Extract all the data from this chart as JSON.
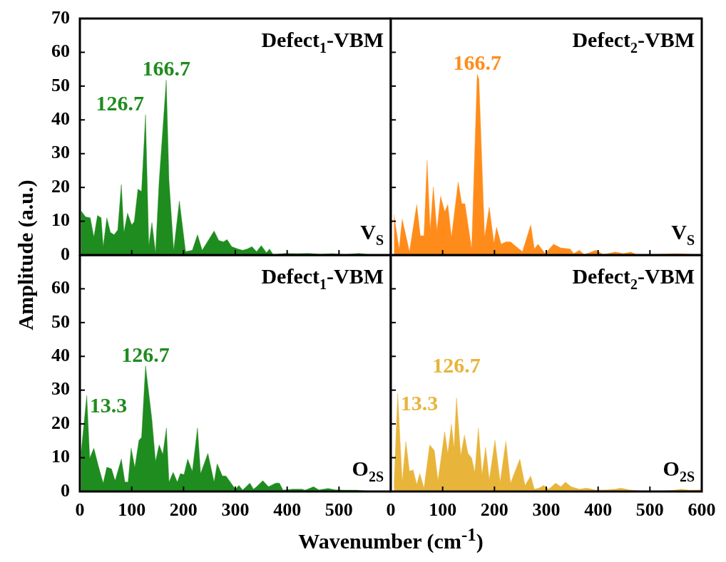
{
  "chart_data": [
    {
      "type": "area",
      "ylabel": "Amplitude (a.u.)",
      "tick_labels": "y",
      "xlim": [
        0,
        600
      ],
      "xticks": [
        0,
        100,
        200,
        300,
        400,
        500
      ],
      "ylim": [
        0,
        70
      ],
      "yticks": [
        0,
        10,
        20,
        30,
        40,
        50,
        60,
        70
      ],
      "x": [
        2,
        11,
        20,
        27,
        34,
        41,
        45,
        52,
        59,
        66,
        73,
        80,
        85,
        92,
        100,
        105,
        112,
        119,
        126.7,
        133,
        139,
        146,
        153,
        166.7,
        172,
        181,
        192,
        204,
        217,
        227,
        236,
        259,
        268,
        277,
        284,
        293,
        305,
        314,
        323,
        332,
        341,
        350,
        360,
        366,
        373,
        396,
        419,
        442,
        465,
        488,
        511,
        539,
        557,
        594
      ],
      "series": [
        {
          "color": "#1e8c1e",
          "values": [
            13.1,
            11.3,
            11,
            5.3,
            11.7,
            11,
            2.5,
            11,
            6.7,
            6,
            7.4,
            20.9,
            6.7,
            12.4,
            8.9,
            9.9,
            19.5,
            18.8,
            41.5,
            2.8,
            9.6,
            0.7,
            22,
            51.8,
            22,
            1.4,
            16,
            1,
            1.4,
            6,
            1.4,
            7.1,
            4.3,
            3.9,
            4.6,
            2.5,
            1.8,
            1.4,
            1.8,
            2.5,
            1,
            2.8,
            0.7,
            1.8,
            0.1,
            0.5,
            0.4,
            0.5,
            0.2,
            0.4,
            0.1,
            0.5,
            0.1,
            0.1
          ]
        }
      ],
      "annotations": [
        {
          "text": "126.7",
          "x": 126.7,
          "y": 41.5
        },
        {
          "text": "166.7",
          "x": 166.7,
          "y": 51.8
        },
        "Defect$_{1}$-VBM",
        "V$_{S}$"
      ]
    },
    {
      "type": "area",
      "tick_labels": false,
      "xlim": [
        0,
        600
      ],
      "xticks": [
        0,
        100,
        200,
        300,
        400,
        500,
        600
      ],
      "ylim": [
        0,
        70
      ],
      "yticks": [
        0,
        10,
        20,
        30,
        40,
        50,
        60
      ],
      "x": [
        6,
        16,
        22,
        36,
        50,
        57,
        64,
        70,
        76,
        82,
        89,
        96,
        104,
        110,
        117,
        130,
        137,
        143,
        156,
        166.7,
        170,
        181,
        190,
        199,
        204,
        213,
        222,
        231,
        245,
        254,
        270,
        277,
        284,
        298,
        314,
        328,
        346,
        353,
        364,
        373,
        396,
        410,
        433,
        449,
        463,
        474,
        502,
        552,
        594
      ],
      "series": [
        {
          "color": "#ff8c1a",
          "values": [
            12,
            1.8,
            10.6,
            1,
            14.9,
            5.7,
            5.7,
            28,
            7.4,
            20.2,
            7.1,
            17.4,
            12.8,
            14.9,
            5.3,
            21.6,
            15.2,
            15.2,
            1.8,
            53.5,
            52,
            5.3,
            14.2,
            3.5,
            8.2,
            3.2,
            3.9,
            3.9,
            2.1,
            1,
            8.9,
            1.8,
            3.2,
            0.4,
            3.2,
            2.1,
            1.8,
            0.4,
            1.4,
            0.1,
            1.4,
            0.1,
            0.9,
            0.4,
            0.9,
            0.1,
            0.1,
            0.4,
            0.1
          ]
        }
      ],
      "annotations": [
        {
          "text": "166.7",
          "x": 166.7,
          "y": 53.5
        },
        "Defect$_{2}$-VBM",
        "V$_{S}$"
      ]
    },
    {
      "type": "area",
      "xlabel": "Wavenumber (cm$^{-1}$)",
      "xlim": [
        0,
        600
      ],
      "xticks": [
        0,
        100,
        200,
        300,
        400,
        500
      ],
      "ylim": [
        0,
        70
      ],
      "yticks": [
        0,
        10,
        20,
        30,
        40,
        50,
        60
      ],
      "x": [
        2,
        13.3,
        19,
        27,
        36,
        45,
        52,
        61,
        68,
        80,
        87,
        93,
        99,
        106,
        114,
        119,
        126.7,
        139,
        146,
        153,
        160,
        167,
        172,
        180,
        188,
        194,
        201,
        208,
        217,
        227,
        233,
        247,
        259,
        265,
        275,
        282,
        300,
        307,
        314,
        328,
        335,
        341,
        353,
        364,
        378,
        385,
        392,
        410,
        428,
        435,
        451,
        461,
        479,
        493,
        511,
        534,
        557,
        594
      ],
      "series": [
        {
          "color": "#1e8c1e",
          "values": [
            11,
            28.4,
            9.9,
            12.8,
            7.4,
            2.5,
            7.2,
            6.7,
            3.2,
            9.6,
            2.8,
            2.8,
            12.8,
            7.1,
            15.2,
            16,
            37.2,
            21.3,
            8.9,
            13.8,
            11,
            18.8,
            2.8,
            5.7,
            2.8,
            5.3,
            5,
            9.6,
            6,
            18.8,
            5.3,
            11.3,
            2.8,
            8.2,
            4.6,
            4.6,
            0.7,
            1.8,
            0.4,
            2.5,
            0.7,
            1.4,
            3.2,
            1.4,
            2.5,
            2.5,
            0.4,
            0.7,
            0.7,
            0.4,
            1.4,
            0.5,
            0.9,
            0.5,
            0.4,
            0.4,
            0.1,
            0.1
          ]
        }
      ],
      "annotations": [
        {
          "text": "13.3",
          "x": 13.3,
          "y": 28.4
        },
        {
          "text": "126.7",
          "x": 126.7,
          "y": 37.2
        },
        "Defect$_{1}$-VBM",
        "O$_{2S}$"
      ]
    },
    {
      "type": "area",
      "tick_labels": "x",
      "xlim": [
        0,
        600
      ],
      "xticks": [
        0,
        100,
        200,
        300,
        400,
        500,
        600
      ],
      "ylim": [
        0,
        70
      ],
      "yticks": [
        0,
        10,
        20,
        30,
        40,
        50,
        60
      ],
      "x": [
        6,
        13.3,
        22,
        29,
        36,
        43,
        50,
        56,
        64,
        75,
        84,
        91,
        104,
        110,
        117,
        122,
        126.7,
        135,
        142,
        149,
        156,
        162,
        169,
        176,
        183,
        190,
        201,
        211,
        222,
        231,
        249,
        259,
        270,
        277,
        286,
        295,
        305,
        318,
        328,
        337,
        348,
        364,
        378,
        396,
        415,
        433,
        444,
        461,
        479,
        502,
        525,
        548,
        561,
        575,
        598
      ],
      "series": [
        {
          "color": "#e8b43a",
          "values": [
            1.4,
            29.1,
            2.8,
            14.9,
            6,
            6.4,
            2.1,
            5.3,
            1,
            13.8,
            12.1,
            3.2,
            17.7,
            11.3,
            19.9,
            12.8,
            27.7,
            10.6,
            16.7,
            11.3,
            9.9,
            5.7,
            18.8,
            5,
            13.1,
            3.5,
            15.2,
            2.8,
            14.9,
            2.5,
            9.6,
            1.8,
            4.6,
            0.7,
            1,
            1.8,
            0.7,
            2.5,
            1.4,
            2.8,
            1.4,
            0.7,
            1,
            0.4,
            0.5,
            0.7,
            1,
            0.5,
            0.2,
            0.1,
            0.1,
            0.4,
            0.7,
            0.4,
            0.5
          ]
        }
      ],
      "annotations": [
        {
          "text": "13.3",
          "x": 13.3,
          "y": 29.1
        },
        {
          "text": "126.7",
          "x": 126.7,
          "y": 27.7
        },
        "Defect$_{2}$-VBM",
        "O$_{2S}$"
      ]
    }
  ]
}
